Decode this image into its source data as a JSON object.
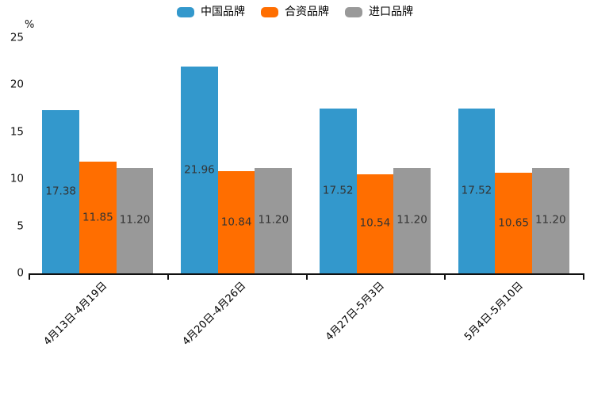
{
  "chart_data": {
    "type": "bar",
    "unit": "%",
    "categories": [
      "4月13日-4月19日",
      "4月20日-4月26日",
      "4月27日-5月3日",
      "5月4日-5月10日"
    ],
    "series": [
      {
        "name": "中国品牌",
        "color": "#3398cc",
        "values": [
          17.38,
          21.96,
          17.52,
          17.52
        ]
      },
      {
        "name": "合资品牌",
        "color": "#ff6e00",
        "values": [
          11.85,
          10.84,
          10.54,
          10.65
        ]
      },
      {
        "name": "进口品牌",
        "color": "#999999",
        "values": [
          11.2,
          11.2,
          11.2,
          11.2
        ]
      }
    ],
    "title": "",
    "xlabel": "",
    "ylabel": "%",
    "ylim": [
      0,
      25
    ],
    "yticks": [
      0,
      5,
      10,
      15,
      20,
      25
    ],
    "grid": false,
    "legend_position": "top-center",
    "value_labels": "inside-center, two decimals",
    "value_label_color": "#333333",
    "axis_color": "#111111"
  }
}
